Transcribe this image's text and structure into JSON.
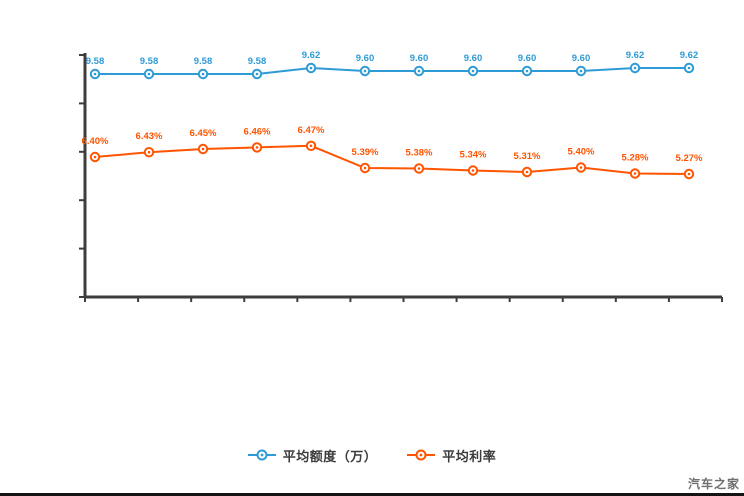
{
  "watermark": "汽车之家",
  "legend": {
    "item1_label": "平均额度（万）",
    "item2_label": "平均利率"
  },
  "colors": {
    "series_blue": "#2d9bd5",
    "series_orange": "#ff5400",
    "axis": "#3d3d3d",
    "legend_text": "#3c3c3c",
    "watermark_text": "#6f6f6f"
  },
  "chart_data": {
    "type": "line",
    "title": "",
    "xlabel": "",
    "ylabel": "",
    "x_count": 12,
    "x_tick_labels": [],
    "axes": {
      "y_labels_visible": false,
      "x_labels_visible": false,
      "grid": false
    },
    "legend_position": "bottom",
    "series": [
      {
        "name": "平均额度（万）",
        "color": "#2d9bd5",
        "values": [
          9.58,
          9.58,
          9.58,
          9.58,
          9.62,
          9.6,
          9.6,
          9.6,
          9.6,
          9.6,
          9.62,
          9.62
        ],
        "labels": [
          "9.58",
          "9.58",
          "9.58",
          "9.58",
          "9.62",
          "9.60",
          "9.60",
          "9.60",
          "9.60",
          "9.60",
          "9.62",
          "9.62"
        ]
      },
      {
        "name": "平均利率",
        "color": "#ff5400",
        "values": [
          6.4,
          6.43,
          6.45,
          6.46,
          6.47,
          5.39,
          5.38,
          5.34,
          5.31,
          5.4,
          5.28,
          5.27
        ],
        "labels": [
          "6.40%",
          "6.43%",
          "6.45%",
          "6.46%",
          "6.47%",
          "5.39%",
          "5.38%",
          "5.34%",
          "5.31%",
          "5.40%",
          "5.28%",
          "5.27%"
        ]
      }
    ]
  }
}
